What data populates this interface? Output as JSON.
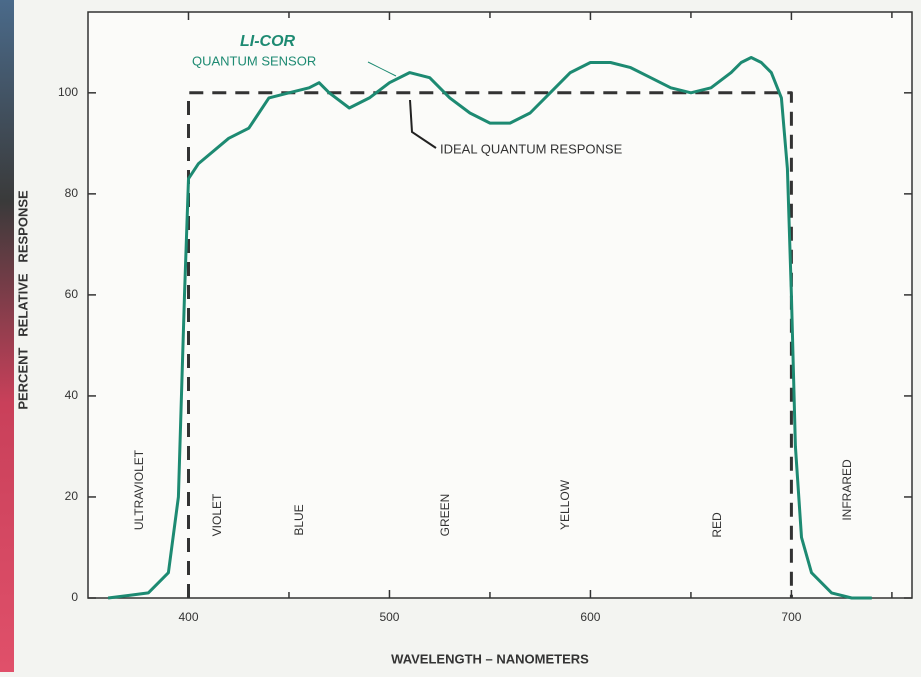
{
  "chart_data": {
    "type": "line",
    "x_label": "WAVELENGTH – NANOMETERS",
    "y_label": "PERCENT   RELATIVE   RESPONSE",
    "xlim": [
      350,
      760
    ],
    "ylim": [
      0,
      116
    ],
    "xticks": [
      400,
      500,
      600,
      700
    ],
    "xminorticks": [
      450,
      550,
      650,
      750
    ],
    "yticks": [
      0,
      20,
      40,
      60,
      80,
      100
    ],
    "annotations": [
      "QUANTUM SENSOR"
    ],
    "bands": [
      "ULTRAVIOLET",
      "VIOLET",
      "BLUE",
      "GREEN",
      "YELLOW",
      "RED",
      "INFRARED"
    ],
    "series": [
      {
        "name": "LI-COR",
        "color": "#1d8a72",
        "dashed": false,
        "x": [
          360,
          370,
          380,
          390,
          395,
          398,
          400,
          405,
          420,
          430,
          440,
          450,
          460,
          465,
          470,
          480,
          490,
          500,
          510,
          520,
          530,
          540,
          550,
          560,
          570,
          580,
          590,
          600,
          610,
          620,
          630,
          640,
          650,
          660,
          670,
          675,
          680,
          685,
          690,
          695,
          698,
          700,
          702,
          705,
          710,
          720,
          730,
          740
        ],
        "values": [
          0,
          0.5,
          1,
          5,
          20,
          60,
          83,
          86,
          91,
          93,
          99,
          100,
          101,
          102,
          100,
          97,
          99,
          102,
          104,
          103,
          99,
          96,
          94,
          94,
          96,
          100,
          104,
          106,
          106,
          105,
          103,
          101,
          100,
          101,
          104,
          106,
          107,
          106,
          104,
          99,
          85,
          60,
          30,
          12,
          5,
          1,
          0,
          0
        ]
      },
      {
        "name": "IDEAL QUANTUM RESPONSE",
        "color": "#333333",
        "dashed": true,
        "x": [
          400,
          400,
          700,
          700
        ],
        "values": [
          0,
          100,
          100,
          0
        ]
      }
    ]
  }
}
